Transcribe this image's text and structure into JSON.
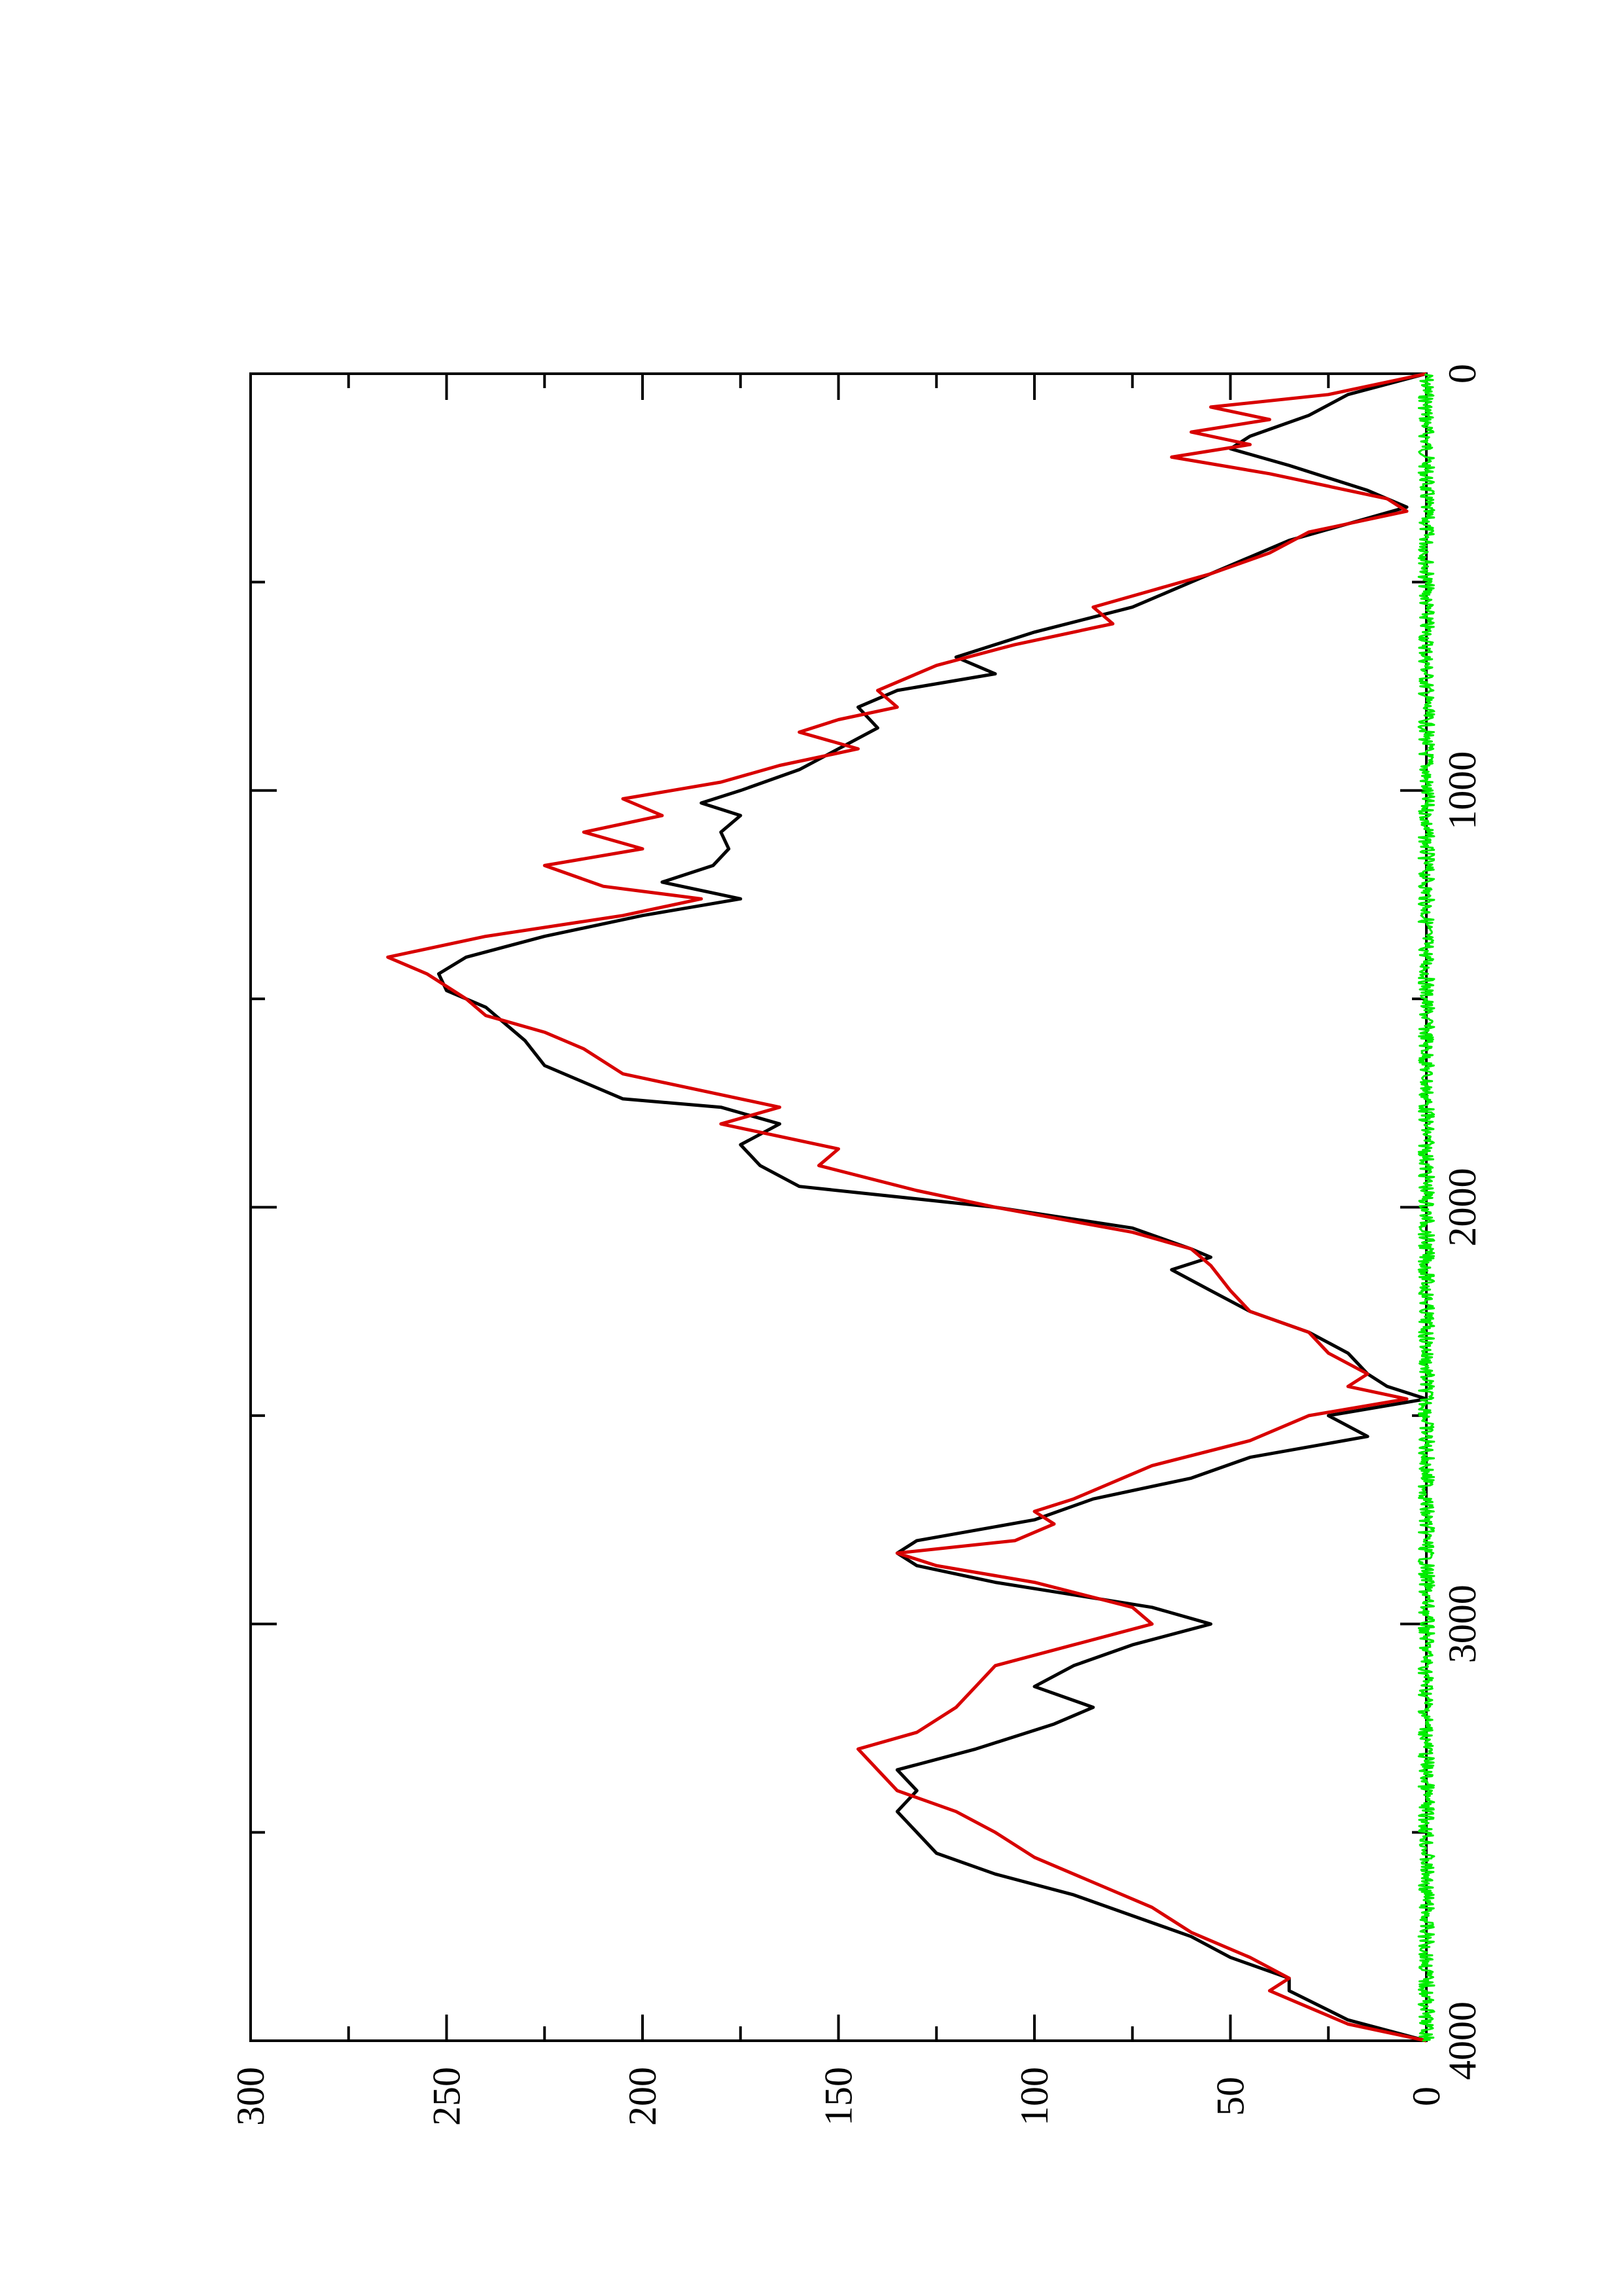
{
  "chart_data": {
    "type": "line",
    "orientation": "rotated-90-ccw",
    "title": "",
    "xlabel": "",
    "ylabel": "",
    "xlim": [
      0,
      4000
    ],
    "ylim": [
      0,
      300
    ],
    "x_ticks": [
      0,
      1000,
      2000,
      3000,
      4000
    ],
    "x_minor_ticks": [
      500,
      1500,
      2500,
      3500
    ],
    "y_ticks": [
      0,
      50,
      100,
      150,
      200,
      250,
      300
    ],
    "y_minor_ticks": [
      25,
      75,
      125,
      175,
      225,
      275
    ],
    "grid": false,
    "legend": "none",
    "series": [
      {
        "color": "#000000",
        "x": [
          0,
          50,
          100,
          150,
          180,
          220,
          280,
          320,
          400,
          480,
          520,
          560,
          620,
          680,
          720,
          760,
          800,
          850,
          900,
          950,
          1000,
          1030,
          1060,
          1100,
          1140,
          1180,
          1220,
          1260,
          1300,
          1350,
          1400,
          1440,
          1480,
          1520,
          1560,
          1600,
          1660,
          1700,
          1740,
          1760,
          1800,
          1850,
          1900,
          1950,
          2000,
          2050,
          2100,
          2120,
          2150,
          2200,
          2250,
          2300,
          2350,
          2400,
          2430,
          2460,
          2500,
          2550,
          2600,
          2650,
          2700,
          2750,
          2800,
          2830,
          2860,
          2900,
          2960,
          3000,
          3050,
          3100,
          3150,
          3200,
          3240,
          3300,
          3350,
          3400,
          3450,
          3500,
          3550,
          3600,
          3650,
          3700,
          3750,
          3800,
          3850,
          3880,
          3950,
          4000
        ],
        "y": [
          0,
          20,
          30,
          45,
          50,
          35,
          15,
          5,
          35,
          55,
          65,
          75,
          100,
          120,
          110,
          135,
          145,
          140,
          150,
          160,
          175,
          185,
          175,
          180,
          178,
          182,
          195,
          175,
          200,
          225,
          245,
          252,
          250,
          240,
          235,
          230,
          225,
          215,
          205,
          180,
          165,
          175,
          170,
          160,
          110,
          75,
          60,
          55,
          65,
          55,
          45,
          30,
          20,
          15,
          10,
          0,
          25,
          15,
          45,
          60,
          85,
          100,
          130,
          135,
          130,
          110,
          70,
          55,
          75,
          90,
          100,
          85,
          95,
          115,
          135,
          130,
          135,
          130,
          125,
          110,
          90,
          75,
          60,
          50,
          35,
          35,
          20,
          0
        ]
      },
      {
        "color": "#d80000",
        "x": [
          0,
          50,
          80,
          110,
          140,
          170,
          200,
          240,
          300,
          330,
          380,
          430,
          480,
          520,
          560,
          600,
          650,
          700,
          760,
          800,
          830,
          860,
          900,
          940,
          980,
          1020,
          1060,
          1100,
          1140,
          1180,
          1230,
          1260,
          1300,
          1350,
          1400,
          1440,
          1470,
          1500,
          1540,
          1580,
          1620,
          1680,
          1720,
          1760,
          1800,
          1860,
          1900,
          1960,
          2000,
          2060,
          2100,
          2140,
          2200,
          2250,
          2300,
          2350,
          2400,
          2430,
          2460,
          2500,
          2560,
          2620,
          2700,
          2730,
          2760,
          2800,
          2830,
          2860,
          2900,
          2960,
          3000,
          3050,
          3100,
          3150,
          3200,
          3260,
          3300,
          3350,
          3400,
          3450,
          3500,
          3560,
          3620,
          3680,
          3740,
          3800,
          3850,
          3880,
          3920,
          3960,
          4000
        ],
        "y": [
          0,
          25,
          55,
          40,
          60,
          45,
          65,
          40,
          10,
          5,
          30,
          40,
          55,
          70,
          85,
          80,
          105,
          125,
          140,
          135,
          150,
          160,
          145,
          165,
          180,
          205,
          195,
          215,
          200,
          225,
          210,
          185,
          205,
          240,
          265,
          255,
          250,
          245,
          240,
          225,
          215,
          205,
          185,
          165,
          180,
          150,
          155,
          130,
          110,
          75,
          60,
          55,
          50,
          45,
          30,
          25,
          15,
          20,
          5,
          30,
          45,
          70,
          90,
          100,
          95,
          105,
          135,
          125,
          100,
          75,
          70,
          90,
          110,
          115,
          120,
          130,
          145,
          140,
          135,
          120,
          110,
          100,
          85,
          70,
          60,
          45,
          35,
          40,
          30,
          20,
          0
        ]
      },
      {
        "color": "#00ee00",
        "noise_amplitude": 2,
        "x": [
          0,
          4000
        ],
        "y": [
          0,
          0
        ]
      }
    ]
  }
}
